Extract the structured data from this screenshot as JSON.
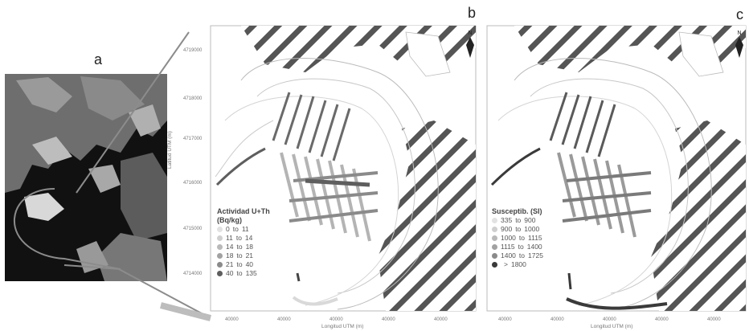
{
  "panels": {
    "a": {
      "letter": "a"
    },
    "b": {
      "letter": "b",
      "north_label": "N",
      "legend": {
        "title_line1": "Actividad U+Th",
        "title_line2": "(Bq/kg)",
        "classes": [
          {
            "from": "0",
            "sep": "to",
            "to": "11",
            "color": "#e2e2e2"
          },
          {
            "from": "11",
            "sep": "to",
            "to": "14",
            "color": "#cfcfcf"
          },
          {
            "from": "14",
            "sep": "to",
            "to": "18",
            "color": "#b9b9b9"
          },
          {
            "from": "18",
            "sep": "to",
            "to": "21",
            "color": "#a2a2a2"
          },
          {
            "from": "21",
            "sep": "to",
            "to": "40",
            "color": "#8a8a8a"
          },
          {
            "from": "40",
            "sep": "to",
            "to": "135",
            "color": "#5e5e5e"
          }
        ]
      },
      "y_ticks": [
        "4719000",
        "4718000",
        "4717000",
        "4716000",
        "4715000",
        "4714000"
      ],
      "x_ticks": [
        "40000",
        "40000",
        "40000",
        "40000",
        "40000"
      ],
      "y_label": "Latitud UTM (m)",
      "x_label": "Longitud UTM (m)"
    },
    "c": {
      "letter": "c",
      "north_label": "N",
      "legend": {
        "title_line1": "Susceptib. (SI)",
        "classes": [
          {
            "from": "335",
            "sep": "to",
            "to": "900",
            "color": "#e2e2e2"
          },
          {
            "from": "900",
            "sep": "to",
            "to": "1000",
            "color": "#cfcfcf"
          },
          {
            "from": "1000",
            "sep": "to",
            "to": "1115",
            "color": "#b9b9b9"
          },
          {
            "from": "1115",
            "sep": "to",
            "to": "1400",
            "color": "#a2a2a2"
          },
          {
            "from": "1400",
            "sep": "to",
            "to": "1725",
            "color": "#8a8a8a"
          },
          {
            "from": "",
            "sep": ">",
            "to": "1800",
            "color": "#3a3a3a"
          }
        ]
      },
      "x_ticks": [
        "40000",
        "40000",
        "40000",
        "40000",
        "40000"
      ],
      "x_label": "Longitud UTM (m)"
    }
  }
}
